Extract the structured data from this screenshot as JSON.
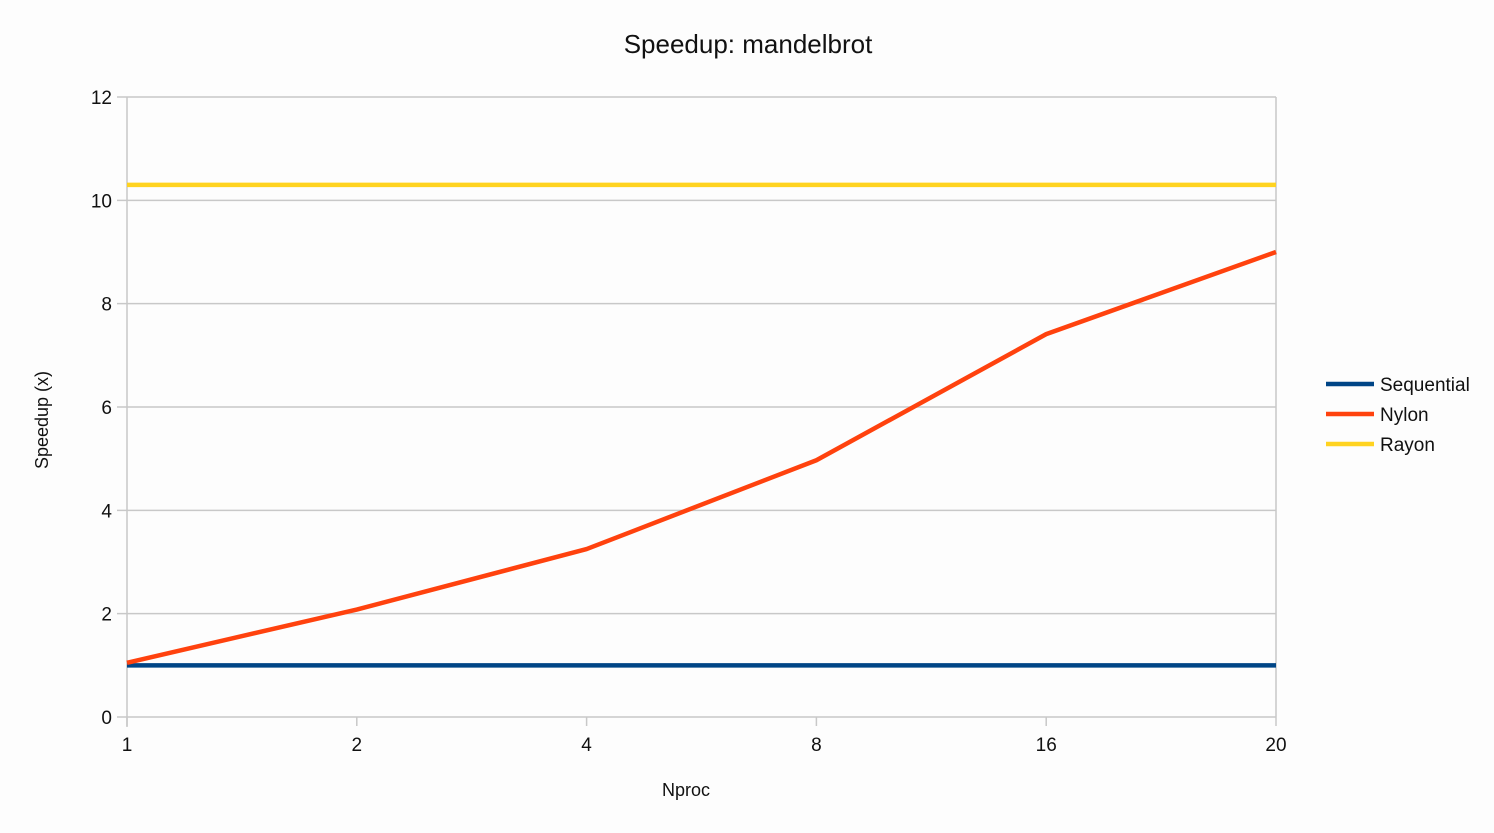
{
  "chart_data": {
    "type": "line",
    "title": "Speedup: mandelbrot",
    "xlabel": "Nproc",
    "ylabel": "Speedup (x)",
    "categories": [
      "1",
      "2",
      "4",
      "8",
      "16",
      "20"
    ],
    "ylim": [
      0,
      12
    ],
    "yticks": [
      "0",
      "2",
      "4",
      "6",
      "8",
      "10",
      "12"
    ],
    "grid": true,
    "legend": "right",
    "series": [
      {
        "name": "Sequential",
        "color": "#004586",
        "values": [
          1,
          1,
          1,
          1,
          1,
          1
        ]
      },
      {
        "name": "Nylon",
        "color": "#ff420e",
        "values": [
          1.05,
          2.08,
          3.25,
          4.97,
          7.41,
          9.0
        ]
      },
      {
        "name": "Rayon",
        "color": "#ffd320",
        "values": [
          10.3,
          10.3,
          10.3,
          10.3,
          10.3,
          10.3
        ]
      }
    ]
  }
}
